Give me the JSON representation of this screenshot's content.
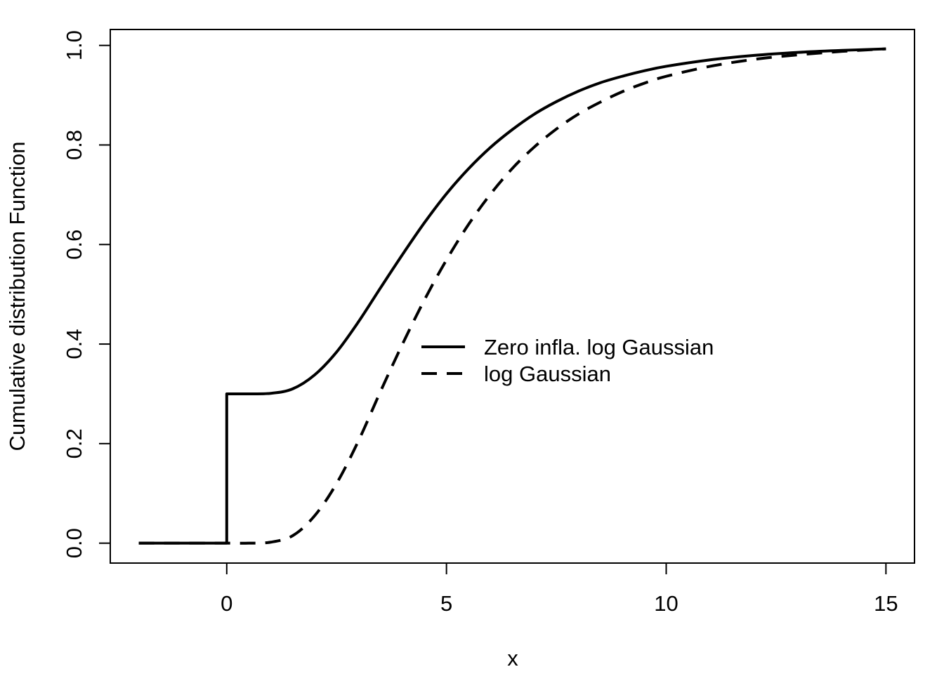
{
  "chart_data": {
    "type": "line",
    "title": "",
    "xlabel": "x",
    "ylabel": "Cumulative distribution Function",
    "xlim": [
      -2.65,
      15.65
    ],
    "ylim": [
      -0.04,
      1.032
    ],
    "xticks": [
      0,
      5,
      10,
      15
    ],
    "xtick_labels": [
      "0",
      "5",
      "10",
      "15"
    ],
    "yticks": [
      0.0,
      0.2,
      0.4,
      0.6,
      0.8,
      1.0
    ],
    "ytick_labels": [
      "0.0",
      "0.2",
      "0.4",
      "0.6",
      "0.8",
      "1.0"
    ],
    "grid": false,
    "legend_position": "center",
    "series": [
      {
        "name": "Zero infla. log Gaussian",
        "line_style": "solid",
        "color": "#000000",
        "x": [
          -2,
          -1,
          0,
          0,
          0.5,
          1,
          1.5,
          2,
          2.5,
          3,
          3.5,
          4,
          4.5,
          5,
          5.5,
          6,
          6.5,
          7,
          7.5,
          8,
          8.5,
          9,
          9.5,
          10,
          11,
          12,
          13,
          14,
          15
        ],
        "y": [
          0,
          0,
          0,
          0.3,
          0.3,
          0.301,
          0.31,
          0.338,
          0.384,
          0.445,
          0.513,
          0.58,
          0.644,
          0.702,
          0.752,
          0.795,
          0.831,
          0.862,
          0.887,
          0.908,
          0.925,
          0.938,
          0.949,
          0.958,
          0.971,
          0.98,
          0.986,
          0.99,
          0.993
        ]
      },
      {
        "name": "log Gaussian",
        "line_style": "dashed",
        "color": "#000000",
        "x": [
          -2,
          -1,
          0,
          0.5,
          1,
          1.5,
          2,
          2.5,
          3,
          3.5,
          4,
          4.5,
          5,
          5.5,
          6,
          6.5,
          7,
          7.5,
          8,
          8.5,
          9,
          9.5,
          10,
          11,
          12,
          13,
          14,
          15
        ],
        "y": [
          0,
          0,
          0,
          0,
          0.002,
          0.015,
          0.055,
          0.12,
          0.206,
          0.305,
          0.4,
          0.489,
          0.569,
          0.64,
          0.701,
          0.753,
          0.796,
          0.832,
          0.862,
          0.886,
          0.907,
          0.924,
          0.938,
          0.958,
          0.972,
          0.981,
          0.988,
          0.993
        ]
      }
    ]
  }
}
